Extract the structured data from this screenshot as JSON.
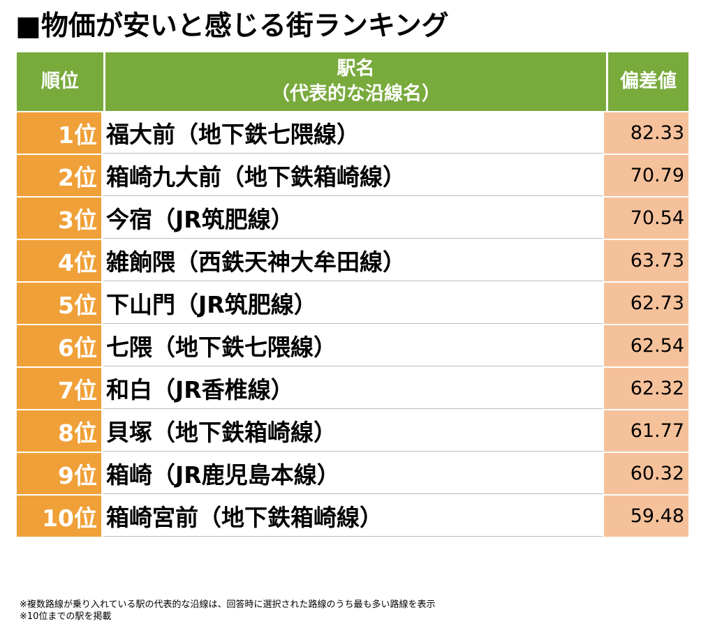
{
  "title": "■物価が安いと感じる街ランキング",
  "header": {
    "rank": "順位",
    "station_line1": "駅名",
    "station_line2": "（代表的な沿線名）",
    "score": "偏差値"
  },
  "rows": [
    {
      "rank": "1位",
      "station": "福大前（地下鉄七隈線）",
      "score": "82.33"
    },
    {
      "rank": "2位",
      "station": "箱崎九大前（地下鉄箱崎線）",
      "score": "70.79"
    },
    {
      "rank": "3位",
      "station": "今宿（JR筑肥線）",
      "score": "70.54"
    },
    {
      "rank": "4位",
      "station": "雑餉隈（西鉄天神大牟田線）",
      "score": "63.73"
    },
    {
      "rank": "5位",
      "station": "下山門（JR筑肥線）",
      "score": "62.73"
    },
    {
      "rank": "6位",
      "station": "七隈（地下鉄七隈線）",
      "score": "62.54"
    },
    {
      "rank": "7位",
      "station": "和白（JR香椎線）",
      "score": "62.32"
    },
    {
      "rank": "8位",
      "station": "貝塚（地下鉄箱崎線）",
      "score": "61.77"
    },
    {
      "rank": "9位",
      "station": "箱崎（JR鹿児島本線）",
      "score": "60.32"
    },
    {
      "rank": "10位",
      "station": "箱崎宮前（地下鉄箱崎線）",
      "score": "59.48"
    }
  ],
  "notes": [
    "※複数路線が乗り入れている駅の代表的な沿線は、回答時に選択された路線のうち最も多い路線を表示",
    "※10位までの駅を掲載"
  ],
  "colors": {
    "header_bg": "#78aa3c",
    "rank_bg": "#f0a038",
    "score_bg": "#f5c19a"
  }
}
